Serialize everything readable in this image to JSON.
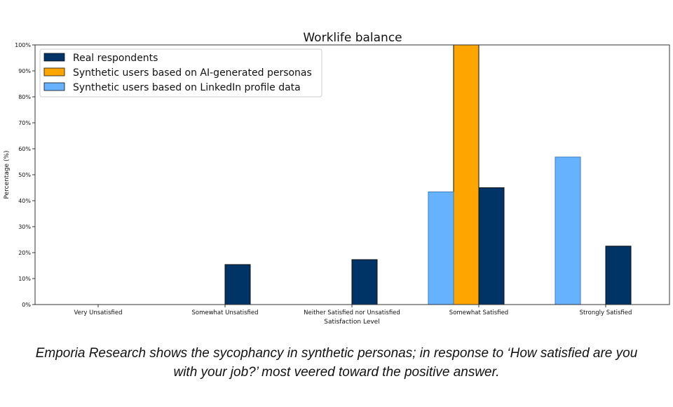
{
  "chart_data": {
    "type": "bar",
    "title": "Worklife balance",
    "xlabel": "Satisfaction Level",
    "ylabel": "Percentage (%)",
    "ylim": [
      0,
      100
    ],
    "yticks": [
      "0%",
      "10%",
      "20%",
      "30%",
      "40%",
      "50%",
      "60%",
      "70%",
      "80%",
      "90%",
      "100%"
    ],
    "categories": [
      "Very Unsatisfied",
      "Somewhat Unsatisfied",
      "Neither Satisfied nor Unsatisfied",
      "Somewhat Satisfied",
      "Strongly Satisfied"
    ],
    "legend_position": "top-left",
    "grid": false,
    "series": [
      {
        "name": "Real respondents",
        "color": "#003366",
        "values": [
          0,
          15.4,
          17.3,
          45.0,
          22.5
        ]
      },
      {
        "name": "Synthetic users based on AI-generated personas",
        "color": "#FFA500",
        "values": [
          0,
          0,
          0,
          100,
          0
        ]
      },
      {
        "name": "Synthetic users based on LinkedIn profile data",
        "color": "#66B2FF",
        "values": [
          0,
          0,
          0,
          43.4,
          56.8
        ]
      }
    ]
  },
  "caption": "Emporia Research shows the sycophancy in synthetic personas; in response to ‘How satisfied are you with your job?’ most veered toward the positive answer."
}
